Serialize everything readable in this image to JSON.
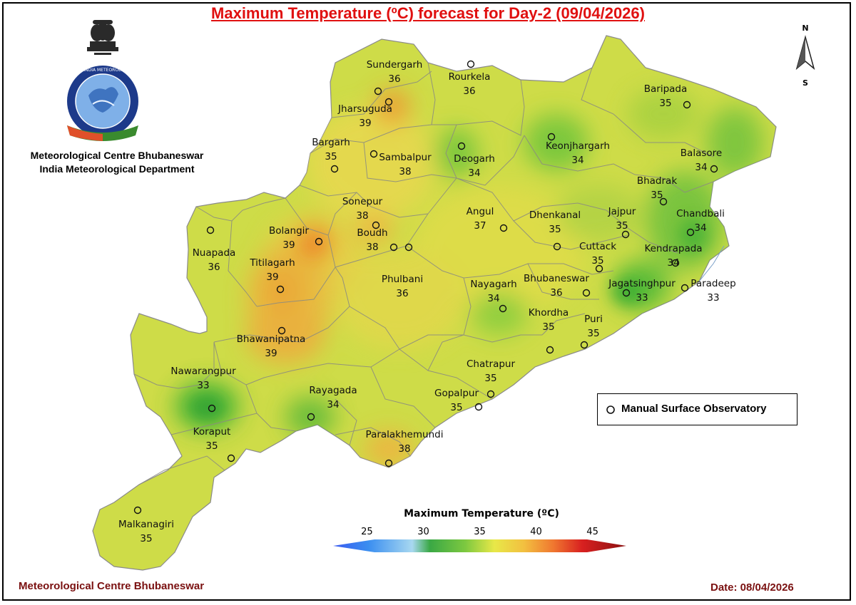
{
  "title": "Maximum Temperature (ºC) forecast for Day-2 (09/04/2026)",
  "organization": {
    "line1": "Meteorological Centre Bhubaneswar",
    "line2": "India Meteorological Department",
    "logo_text": "भारत मौसम विज्ञान विभाग · INDIA METEOROLOGICAL DEPARTMENT"
  },
  "north_arrow": {
    "top": "N",
    "bottom": "S"
  },
  "legend": {
    "observatory_label": "Manual Surface Observatory",
    "colorbar_title": "Maximum Temperature (ºC)",
    "ticks": [
      "25",
      "30",
      "35",
      "40",
      "45"
    ],
    "range": [
      22,
      48
    ]
  },
  "footer": {
    "left": "Meteorological Centre Bhubaneswar",
    "right": "Date: 08/04/2026"
  },
  "colors": {
    "title": "#e01010",
    "footer": "#7a1010",
    "base_fill": "#cedc48",
    "warm": "#f09530",
    "cool": "#38b035"
  },
  "stations": [
    {
      "name": "Sundergarh",
      "temp": "36"
    },
    {
      "name": "Rourkela",
      "temp": "36"
    },
    {
      "name": "Jharsuguda",
      "temp": "39"
    },
    {
      "name": "Baripada",
      "temp": "35"
    },
    {
      "name": "Keonjhargarh",
      "temp": "34"
    },
    {
      "name": "Deogarh",
      "temp": "34"
    },
    {
      "name": "Bargarh",
      "temp": "35"
    },
    {
      "name": "Sambalpur",
      "temp": "38"
    },
    {
      "name": "Balasore",
      "temp": "34"
    },
    {
      "name": "Bhadrak",
      "temp": "35"
    },
    {
      "name": "Sonepur",
      "temp": "38"
    },
    {
      "name": "Angul",
      "temp": "37"
    },
    {
      "name": "Dhenkanal",
      "temp": "35"
    },
    {
      "name": "Jajpur",
      "temp": "35"
    },
    {
      "name": "Chandbali",
      "temp": "34"
    },
    {
      "name": "Bolangir",
      "temp": "39"
    },
    {
      "name": "Boudh",
      "temp": "38"
    },
    {
      "name": "Nuapada",
      "temp": "36"
    },
    {
      "name": "Cuttack",
      "temp": "35"
    },
    {
      "name": "Kendrapada",
      "temp": "34"
    },
    {
      "name": "Titilagarh",
      "temp": "39"
    },
    {
      "name": "Phulbani",
      "temp": "36"
    },
    {
      "name": "Nayagarh",
      "temp": "34"
    },
    {
      "name": "Bhubaneswar",
      "temp": "36"
    },
    {
      "name": "Jagatsinghpur",
      "temp": "33"
    },
    {
      "name": "Paradeep",
      "temp": "33"
    },
    {
      "name": "Khordha",
      "temp": "35"
    },
    {
      "name": "Puri",
      "temp": "35"
    },
    {
      "name": "Bhawanipatna",
      "temp": "39"
    },
    {
      "name": "Chatrapur",
      "temp": "35"
    },
    {
      "name": "Nawarangpur",
      "temp": "33"
    },
    {
      "name": "Rayagada",
      "temp": "34"
    },
    {
      "name": "Gopalpur",
      "temp": "35"
    },
    {
      "name": "Koraput",
      "temp": "35"
    },
    {
      "name": "Paralakhemundi",
      "temp": "38"
    },
    {
      "name": "Malkanagiri",
      "temp": "35"
    }
  ]
}
